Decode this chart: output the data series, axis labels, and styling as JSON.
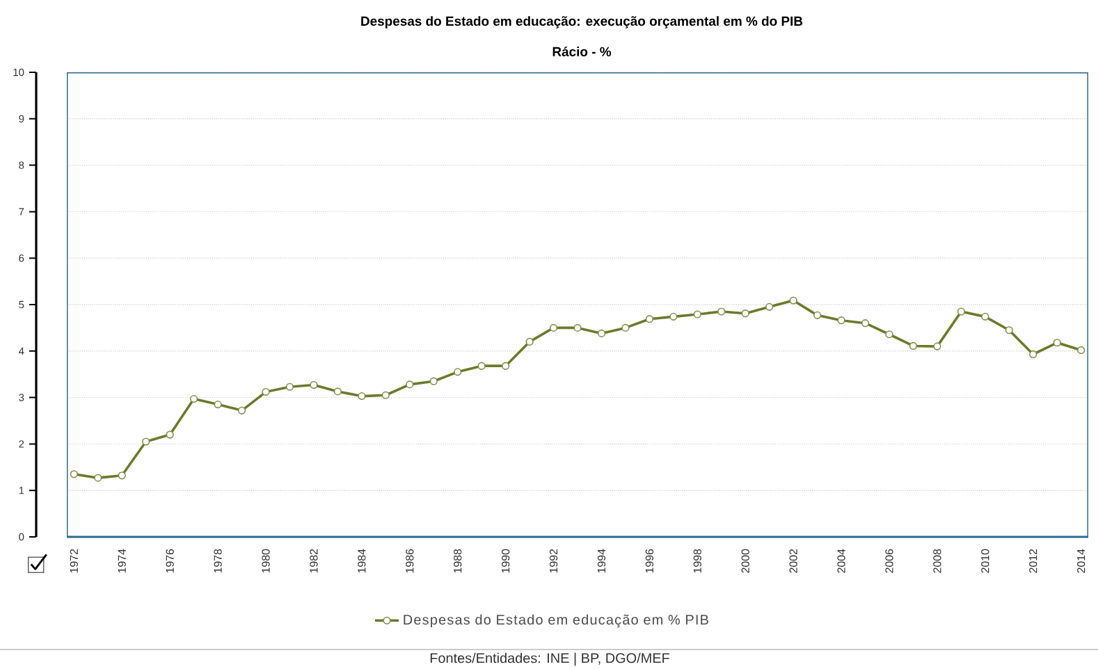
{
  "chart_data": {
    "type": "line",
    "title": "Despesas do Estado em educação: execução orçamental em % do PIB",
    "subtitle": "Rácio - %",
    "categories": [
      "1972",
      null,
      "1974",
      null,
      "1976",
      null,
      "1978",
      null,
      "1980",
      null,
      "1982",
      null,
      "1984",
      null,
      "1986",
      null,
      "1988",
      null,
      "1990",
      null,
      "1992",
      null,
      "1994",
      null,
      "1996",
      null,
      "1998",
      null,
      "2000",
      null,
      "2002",
      null,
      "2004",
      null,
      "2006",
      null,
      "2008",
      null,
      "2010",
      null,
      "2012",
      null,
      "2014"
    ],
    "series": [
      {
        "name": "Despesas do Estado em educação em % PIB",
        "color": "#6b7b2b",
        "values": [
          1.35,
          1.27,
          1.32,
          2.05,
          2.2,
          2.97,
          2.85,
          2.72,
          3.12,
          3.23,
          3.27,
          3.13,
          3.03,
          3.05,
          3.28,
          3.35,
          3.55,
          3.68,
          3.68,
          4.2,
          4.5,
          4.5,
          4.38,
          4.5,
          4.69,
          4.74,
          4.79,
          4.85,
          4.81,
          4.95,
          5.09,
          4.77,
          4.66,
          4.6,
          4.36,
          4.11,
          4.1,
          4.85,
          4.74,
          4.45,
          3.93,
          4.18,
          4.02
        ]
      }
    ],
    "ylim": [
      0,
      10
    ],
    "yticks": [
      0,
      1,
      2,
      3,
      4,
      5,
      6,
      7,
      8,
      9,
      10
    ],
    "grid": "y",
    "legend": "bottom",
    "marker": "circle",
    "line_style": "solid",
    "annotations": [
      "Fontes/Entidades: INE | BP, DGO/MEF"
    ]
  }
}
